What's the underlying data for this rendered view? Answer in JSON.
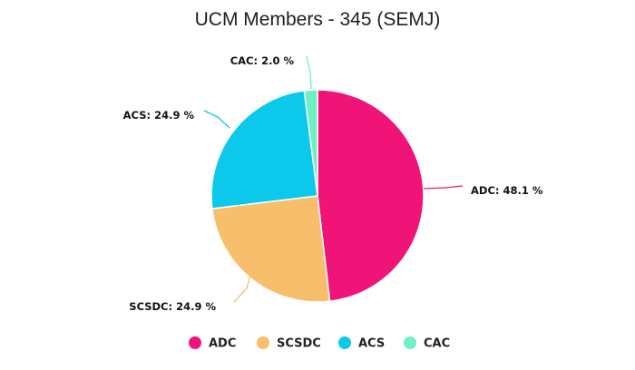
{
  "chart_data": {
    "type": "pie",
    "title": "UCM Members - 345 (SEMJ)",
    "slices": [
      {
        "name": "ADC",
        "value": 48.1,
        "label": "ADC: 48.1 %",
        "color": "#f01478"
      },
      {
        "name": "SCSDC",
        "value": 24.9,
        "label": "SCSDC: 24.9 %",
        "color": "#f7be6b"
      },
      {
        "name": "ACS",
        "value": 24.9,
        "label": "ACS: 24.9 %",
        "color": "#0cc8ea"
      },
      {
        "name": "CAC",
        "value": 2.0,
        "label": "CAC: 2.0 %",
        "color": "#6ef0c2"
      }
    ],
    "legend": {
      "position": "bottom",
      "items": [
        "ADC",
        "SCSDC",
        "ACS",
        "CAC"
      ]
    }
  }
}
